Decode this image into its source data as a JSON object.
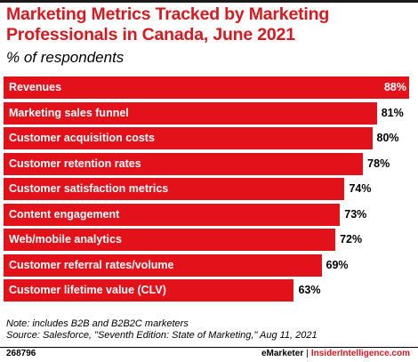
{
  "title": "Marketing Metrics Tracked by Marketing Professionals in Canada, June 2021",
  "subtitle": "% of respondents",
  "chart_data": {
    "type": "bar",
    "orientation": "horizontal",
    "categories": [
      "Revenues",
      "Marketing sales funnel",
      "Customer acquisition costs",
      "Customer retention rates",
      "Customer satisfaction metrics",
      "Content engagement",
      "Web/mobile analytics",
      "Customer referral rates/volume",
      "Customer lifetime value (CLV)"
    ],
    "values": [
      88,
      81,
      80,
      78,
      74,
      73,
      72,
      69,
      63
    ],
    "value_labels": [
      "88%",
      "81%",
      "80%",
      "78%",
      "74%",
      "73%",
      "72%",
      "69%",
      "63%"
    ],
    "title": "Marketing Metrics Tracked by Marketing Professionals in Canada, June 2021",
    "subtitle": "% of respondents",
    "xlim": [
      0,
      88
    ],
    "grid": false,
    "legend": "none",
    "bar_color": "#e3121a"
  },
  "notes": {
    "note": "Note: includes B2B and B2B2C marketers",
    "source": "Source: Salesforce, \"Seventh Edition: State of Marketing,\" Aug 11, 2021"
  },
  "footer": {
    "chart_id": "268796",
    "brand_left": "eMarketer",
    "separator": "|",
    "brand_right": "InsiderIntelligence.com"
  },
  "colors": {
    "title": "#d71920",
    "bar": "#e3121a",
    "brand": "#d71920"
  }
}
